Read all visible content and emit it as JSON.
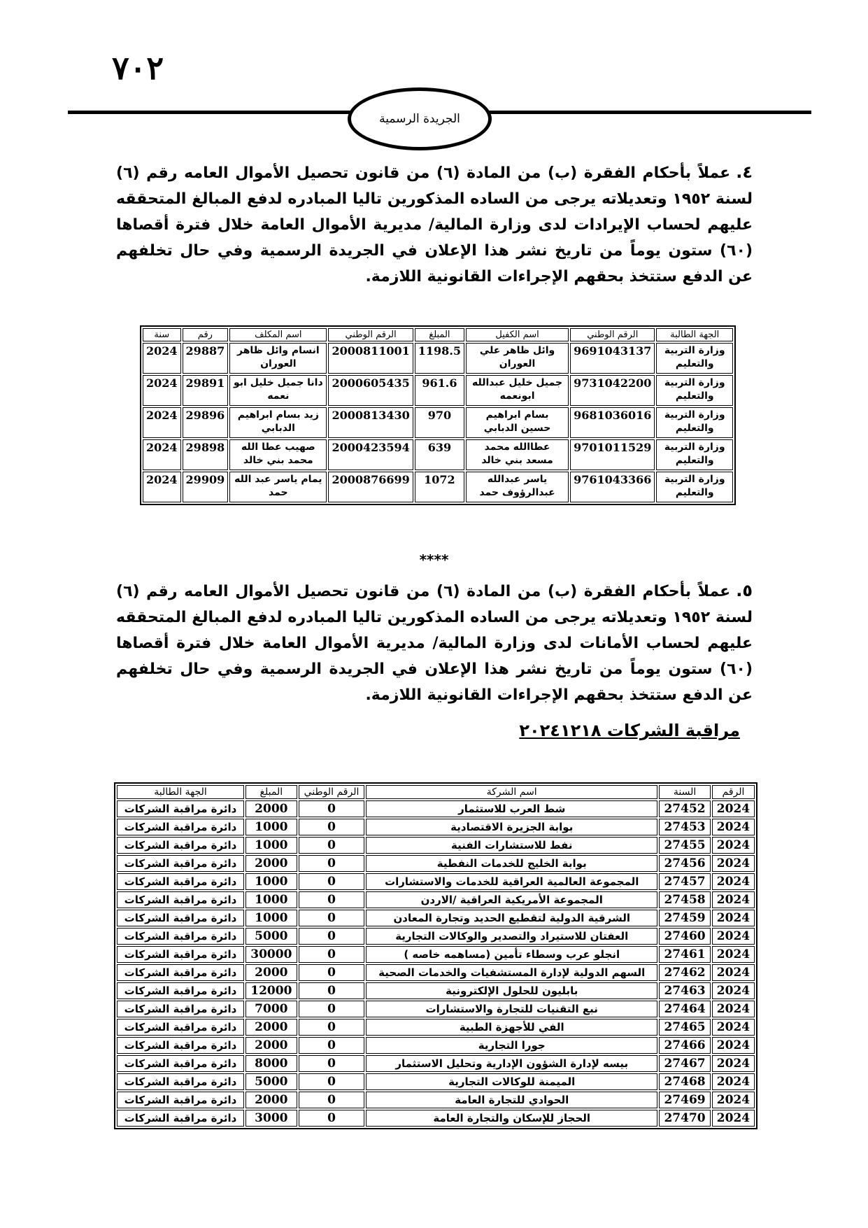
{
  "page_number": "٧٠٢",
  "header": {
    "title": "الجريدة الرسمية"
  },
  "section_4": {
    "number": "٤.",
    "text": "عملاً بأحكام الفقرة (ب) من المادة (٦) من قانون تحصيل الأموال العامه رقم (٦) لسنة ١٩٥٢ وتعديلاته يرجى من الساده المذكورين تاليا المبادره لدفع المبالغ المتحققه عليهم لحساب الإيرادات لدى وزارة المالية/ مديرية الأموال العامة خلال فترة أقصاها (٦٠) ستون يوماً من تاريخ نشر هذا الإعلان في الجريدة الرسمية وفي حال تخلفهم عن الدفع ستتخذ بحقهم الإجراءات القانونية اللازمة."
  },
  "table_1": {
    "headers": [
      "الجهة الطالبة",
      "الرقم الوطني",
      "اسم الكفيل",
      "المبلغ",
      "الرقم الوطني",
      "اسم المكلف",
      "رقم",
      "سنة"
    ],
    "rows": [
      [
        "وزارة التربية والتعليم",
        "9691043137",
        "وائل ظاهر علي العوران",
        "1198.5",
        "2000811001",
        "انسام وائل ظاهر العوران",
        "29887",
        "2024"
      ],
      [
        "وزارة التربية والتعليم",
        "9731042200",
        "جميل خليل عبدالله ابونعمه",
        "961.6",
        "2000605435",
        "دانا جميل خليل ابو نعمه",
        "29891",
        "2024"
      ],
      [
        "وزارة التربية والتعليم",
        "9681036016",
        "بسام ابراهيم حسين الدبابي",
        "970",
        "2000813430",
        "زيد بسام ابراهيم الدبابي",
        "29896",
        "2024"
      ],
      [
        "وزارة التربية والتعليم",
        "9701011529",
        "عطاالله محمد مسعد بني خالد",
        "639",
        "2000423594",
        "صهيب عطا الله محمد بني خالد",
        "29898",
        "2024"
      ],
      [
        "وزارة التربية والتعليم",
        "9761043366",
        "ياسر عبدالله عبدالرؤوف حمد",
        "1072",
        "2000876699",
        "يمام ياسر عبد الله حمد",
        "29909",
        "2024"
      ]
    ]
  },
  "separator": "****",
  "section_5": {
    "number": "٥.",
    "text": "عملاً بأحكام الفقرة (ب) من المادة (٦) من قانون تحصيل الأموال العامه رقم (٦) لسنة ١٩٥٢ وتعديلاته يرجى من الساده المذكورين تاليا المبادره لدفع المبالغ المتحققه عليهم لحساب الأمانات لدى وزارة المالية/ مديرية الأموال العامة خلال فترة أقصاها (٦٠) ستون يوماً من تاريخ نشر هذا الإعلان في الجريدة الرسمية وفي حال تخلفهم عن الدفع ستتخذ بحقهم الإجراءات القانونية اللازمة."
  },
  "subheading": "مراقبة الشركات ٢٠٢٤١٢١٨",
  "table_2": {
    "headers": [
      "الرقم",
      "السنة",
      "اسم الشركة",
      "الرقم الوطني",
      "المبلغ",
      "الجهة الطالبة"
    ],
    "rows": [
      [
        "2024",
        "27452",
        "شط العرب للاستثمار",
        "0",
        "2000",
        "دائرة مراقبة الشركات"
      ],
      [
        "2024",
        "27453",
        "بوابة الجزيرة الاقتصادية",
        "0",
        "1000",
        "دائرة مراقبة الشركات"
      ],
      [
        "2024",
        "27455",
        "نفط للاستشارات الفنية",
        "0",
        "1000",
        "دائرة مراقبة الشركات"
      ],
      [
        "2024",
        "27456",
        "بوابة الخليج للخدمات النفطية",
        "0",
        "2000",
        "دائرة مراقبة الشركات"
      ],
      [
        "2024",
        "27457",
        "المجموعة العالمية العراقية للخدمات والاستشارات",
        "0",
        "1000",
        "دائرة مراقبة الشركات"
      ],
      [
        "2024",
        "27458",
        "المجموعة الأمريكية العراقية /الاردن",
        "0",
        "1000",
        "دائرة مراقبة الشركات"
      ],
      [
        "2024",
        "27459",
        "الشرقية الدولية لتقطيع الحديد وتجارة المعادن",
        "0",
        "1000",
        "دائرة مراقبة الشركات"
      ],
      [
        "2024",
        "27460",
        "العفتان للاستيراد والتصدير والوكالات التجارية",
        "0",
        "5000",
        "دائرة مراقبة الشركات"
      ],
      [
        "2024",
        "27461",
        "انجلو عرب وسطاء تأمين (مساهمه خاصه )",
        "0",
        "30000",
        "دائرة مراقبة الشركات"
      ],
      [
        "2024",
        "27462",
        "السهم الدولية لإدارة المستشفيات والخدمات الصحية",
        "0",
        "2000",
        "دائرة مراقبة الشركات"
      ],
      [
        "2024",
        "27463",
        "بابليون للحلول الإلكترونية",
        "0",
        "12000",
        "دائرة مراقبة الشركات"
      ],
      [
        "2024",
        "27464",
        "نبع التقنيات للتجارة والاستشارات",
        "0",
        "7000",
        "دائرة مراقبة الشركات"
      ],
      [
        "2024",
        "27465",
        "الفي للأجهزة الطبية",
        "0",
        "2000",
        "دائرة مراقبة الشركات"
      ],
      [
        "2024",
        "27466",
        "جورا التجارية",
        "0",
        "2000",
        "دائرة مراقبة الشركات"
      ],
      [
        "2024",
        "27467",
        "بيسه لإدارة الشؤون الإدارية وتحليل الاستثمار",
        "0",
        "8000",
        "دائرة مراقبة الشركات"
      ],
      [
        "2024",
        "27468",
        "الميمنة للوكالات التجارية",
        "0",
        "5000",
        "دائرة مراقبة الشركات"
      ],
      [
        "2024",
        "27469",
        "الحوادي للتجارة العامة",
        "0",
        "2000",
        "دائرة مراقبة الشركات"
      ],
      [
        "2024",
        "27470",
        "الحجاز للإسكان والتجارة العامة",
        "0",
        "3000",
        "دائرة مراقبة الشركات"
      ]
    ]
  }
}
